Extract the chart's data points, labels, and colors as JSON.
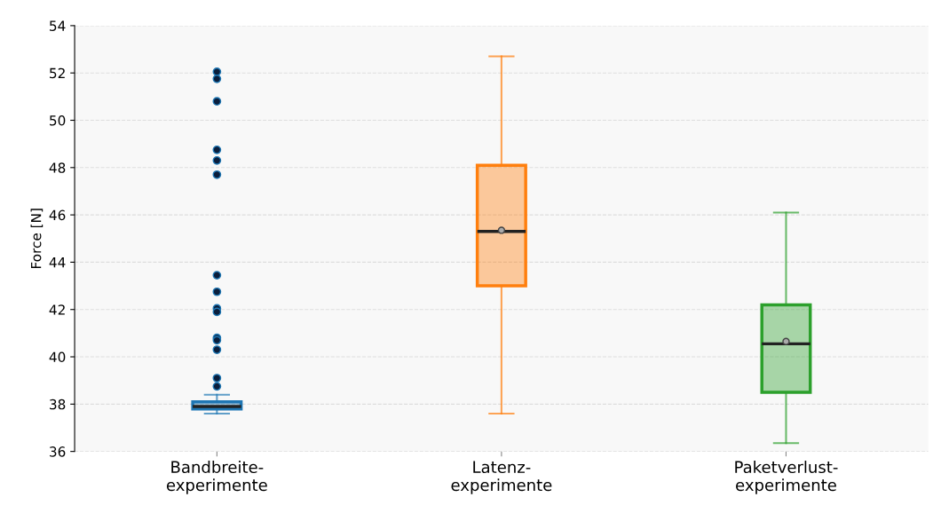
{
  "chart_data": {
    "type": "box",
    "ylabel": "Force [N]",
    "categories": [
      "Bandbreite-\nexperimente",
      "Latenz-\nexperimente",
      "Paketverlust-\nexperimente"
    ],
    "series": [
      {
        "boxes": [
          {
            "low": 37.6,
            "q1": 37.8,
            "median": 37.9,
            "q3": 38.1,
            "high": 38.4,
            "outliers": [
              52.05,
              51.75,
              50.8,
              48.75,
              48.3,
              47.7,
              43.45,
              42.75,
              42.05,
              41.9,
              40.8,
              40.7,
              40.3,
              39.1,
              38.75
            ]
          },
          {
            "low": 37.6,
            "q1": 43.0,
            "median": 45.3,
            "q3": 48.1,
            "high": 52.7,
            "mean": 45.35
          },
          {
            "low": 36.35,
            "q1": 38.5,
            "median": 40.55,
            "q3": 42.2,
            "high": 46.1,
            "mean": 40.65
          }
        ]
      }
    ],
    "colors": [
      "#1f77b4",
      "#ff7f0e",
      "#2ca02c"
    ],
    "ylim": [
      36,
      54
    ],
    "yticks": [
      36,
      38,
      40,
      42,
      44,
      46,
      48,
      50,
      52,
      54
    ],
    "grid": "y"
  }
}
